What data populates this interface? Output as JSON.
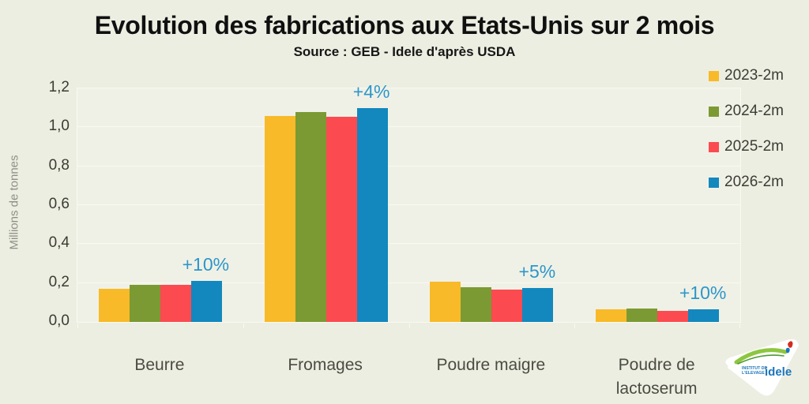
{
  "title": "Evolution des fabrications aux Etats-Unis sur 2 mois",
  "subtitle": "Source : GEB - Idele d'après USDA",
  "chart_data": {
    "type": "bar",
    "categories": [
      "Beurre",
      "Fromages",
      "Poudre maigre",
      "Poudre de lactoserum"
    ],
    "series": [
      {
        "name": "2023-2m",
        "color": "#F8BA28",
        "values": [
          0.17,
          1.06,
          0.205,
          0.065
        ]
      },
      {
        "name": "2024-2m",
        "color": "#7B9A33",
        "values": [
          0.19,
          1.08,
          0.18,
          0.07
        ]
      },
      {
        "name": "2025-2m",
        "color": "#FB4B50",
        "values": [
          0.19,
          1.055,
          0.165,
          0.058
        ]
      },
      {
        "name": "2026-2m",
        "color": "#1288BE",
        "values": [
          0.21,
          1.1,
          0.175,
          0.064
        ]
      }
    ],
    "annotations": [
      {
        "category": "Beurre",
        "label": "+10%",
        "series": "2026-2m"
      },
      {
        "category": "Fromages",
        "label": "+4%",
        "series": "2026-2m"
      },
      {
        "category": "Poudre maigre",
        "label": "+5%",
        "series": "2026-2m"
      },
      {
        "category": "Poudre de lactoserum",
        "label": "+10%",
        "series": "2026-2m"
      }
    ],
    "annotation_color": "#2D96CA",
    "ylabel": "Millions de tonnes",
    "xlabel": "",
    "ylim": [
      0,
      1.2
    ],
    "ytick_step": 0.2,
    "yticks": [
      "0,0",
      "0,2",
      "0,4",
      "0,6",
      "0,8",
      "1,0",
      "1,2"
    ],
    "grid": true,
    "legend_position": "right"
  },
  "logo": {
    "org_line1": "INSTITUT DE",
    "org_line2": "L'ELEVAGE",
    "name": "idele"
  },
  "colors": {
    "background": "#EDEEE2",
    "plot_background": "#F0F1E6",
    "gridline": "#F9F9F0"
  }
}
